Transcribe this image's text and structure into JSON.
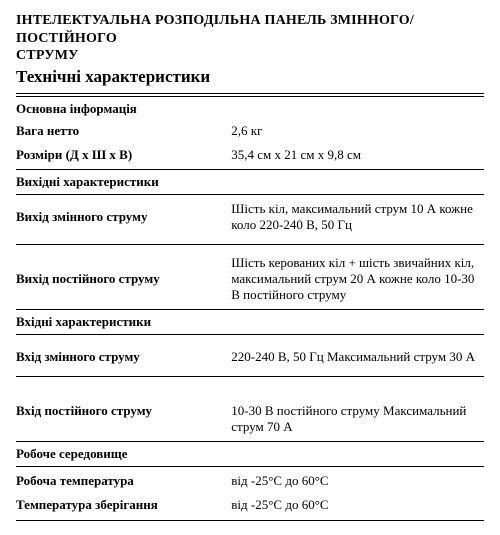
{
  "title_line1": "ІНТЕЛЕКТУАЛЬНА РОЗПОДІЛЬНА ПАНЕЛЬ ЗМІННОГО/ПОСТІЙНОГО",
  "title_line2": "СТРУМУ",
  "subtitle": "Технічні характеристики",
  "section_basic": "Основна інформація",
  "weight_label": "Вага нетто",
  "weight_value": "2,6 кг",
  "dims_label": "Розміри (Д х Ш х В)",
  "dims_value": "35,4 см x 21 см x 9,8 см",
  "section_output": "Вихідні характеристики",
  "ac_out_label": "Вихід змінного струму",
  "ac_out_value": "Шість кіл, максимальний струм 10 А кожне коло 220-240 В, 50 Гц",
  "dc_out_label": "Вихід постійного струму",
  "dc_out_value": "Шість керованих кіл + шість звичайних кіл, максимальний струм 20 А кожне коло 10-30 В постійного струму",
  "section_input": "Вхідні характеристики",
  "ac_in_label": "Вхід змінного струму",
  "ac_in_value": "220-240 В, 50 Гц Максимальний струм 30 А",
  "dc_in_label": "Вхід постійного струму",
  "dc_in_value": "10-30 В постійного струму Максимальний струм 70 А",
  "section_env": "Робоче середовище",
  "op_temp_label": "Робоча температура",
  "op_temp_value": "від -25°C до 60°C",
  "st_temp_label": "Температура зберігання",
  "st_temp_value": "від -25°C до 60°C"
}
